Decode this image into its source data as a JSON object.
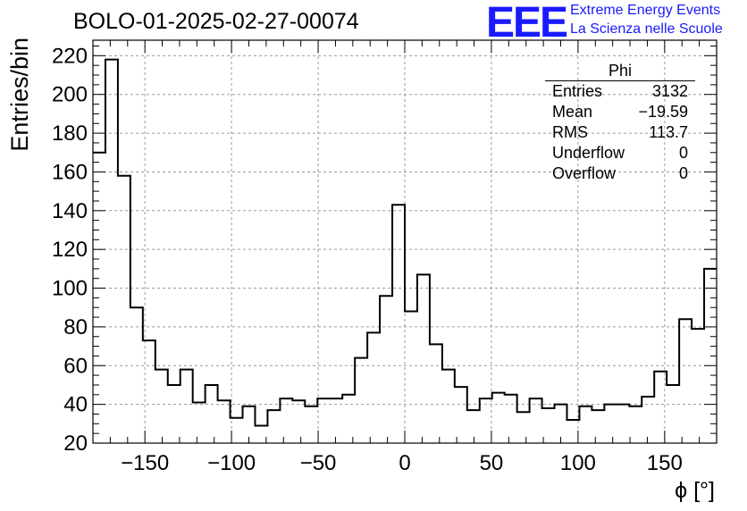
{
  "title": "BOLO-01-2025-02-27-00074",
  "logo": {
    "mark": "EEE",
    "line1": "Extreme Energy Events",
    "line2": "La Scienza nelle Scuole",
    "color": "#1a1aff"
  },
  "stats": {
    "title": "Phi",
    "rows": [
      {
        "label": "Entries",
        "value": "3132"
      },
      {
        "label": "Mean",
        "value": "−19.59"
      },
      {
        "label": "RMS",
        "value": "113.7"
      },
      {
        "label": "Underflow",
        "value": "0"
      },
      {
        "label": "Overflow",
        "value": "0"
      }
    ]
  },
  "chart_data": {
    "type": "bar",
    "style": "step-histogram",
    "xlabel": "ϕ [°]",
    "ylabel": "Entries/bin",
    "xlim": [
      -180,
      180
    ],
    "ylim": [
      20,
      228
    ],
    "grid": true,
    "bin_width": 7.2,
    "x_ticks": [
      -150,
      -100,
      -50,
      0,
      50,
      100,
      150
    ],
    "x_tick_labels": [
      "−150",
      "−100",
      "−50",
      "0",
      "50",
      "100",
      "150"
    ],
    "y_ticks": [
      20,
      40,
      60,
      80,
      100,
      120,
      140,
      160,
      180,
      200,
      220
    ],
    "y_tick_labels": [
      "20",
      "40",
      "60",
      "80",
      "100",
      "120",
      "140",
      "160",
      "180",
      "200",
      "220"
    ],
    "values": [
      170,
      218,
      158,
      90,
      73,
      58,
      50,
      58,
      41,
      50,
      42,
      33,
      39,
      29,
      37,
      43,
      42,
      39,
      43,
      43,
      45,
      64,
      77,
      96,
      143,
      88,
      107,
      71,
      58,
      49,
      37,
      43,
      46,
      45,
      36,
      43,
      38,
      40,
      32,
      39,
      37,
      40,
      40,
      39,
      44,
      57,
      50,
      84,
      79,
      110
    ]
  }
}
